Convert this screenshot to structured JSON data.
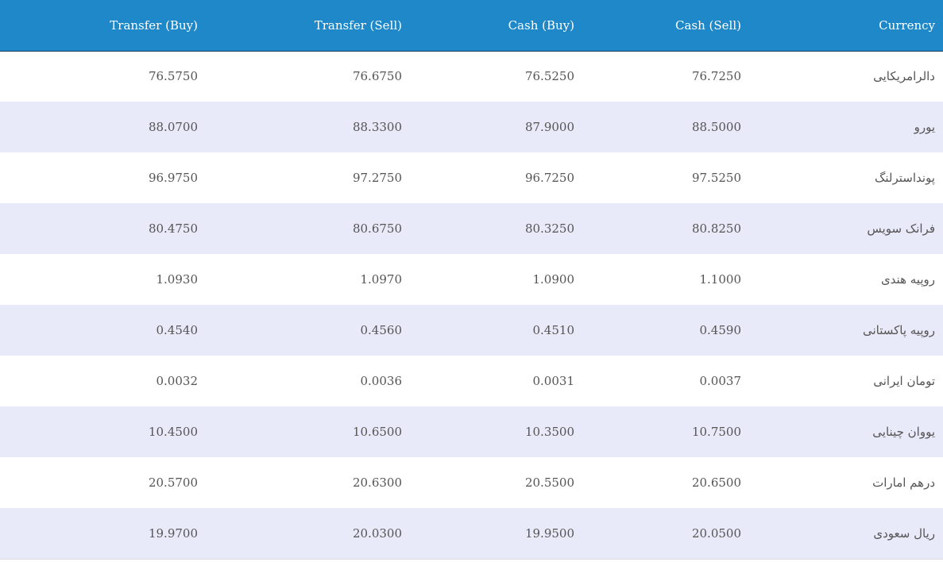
{
  "headers": {
    "transfer_buy": "Transfer (Buy)",
    "transfer_sell": "Transfer (Sell)",
    "cash_buy": "Cash (Buy)",
    "cash_sell": "Cash (Sell)",
    "currency": "Currency"
  },
  "rows": [
    {
      "transfer_buy": "76.5750",
      "transfer_sell": "76.6750",
      "cash_buy": "76.5250",
      "cash_sell": "76.7250",
      "currency": "دالرامریکایی"
    },
    {
      "transfer_buy": "88.0700",
      "transfer_sell": "88.3300",
      "cash_buy": "87.9000",
      "cash_sell": "88.5000",
      "currency": "یورو"
    },
    {
      "transfer_buy": "96.9750",
      "transfer_sell": "97.2750",
      "cash_buy": "96.7250",
      "cash_sell": "97.5250",
      "currency": "پونداسترلنگ"
    },
    {
      "transfer_buy": "80.4750",
      "transfer_sell": "80.6750",
      "cash_buy": "80.3250",
      "cash_sell": "80.8250",
      "currency": "فرانک سویس"
    },
    {
      "transfer_buy": "1.0930",
      "transfer_sell": "1.0970",
      "cash_buy": "1.0900",
      "cash_sell": "1.1000",
      "currency": "روپیه هندی"
    },
    {
      "transfer_buy": "0.4540",
      "transfer_sell": "0.4560",
      "cash_buy": "0.4510",
      "cash_sell": "0.4590",
      "currency": "روپیه پاکستانی"
    },
    {
      "transfer_buy": "0.0032",
      "transfer_sell": "0.0036",
      "cash_buy": "0.0031",
      "cash_sell": "0.0037",
      "currency": "تومان ایرانی"
    },
    {
      "transfer_buy": "10.4500",
      "transfer_sell": "10.6500",
      "cash_buy": "10.3500",
      "cash_sell": "10.7500",
      "currency": "یووان چینایی"
    },
    {
      "transfer_buy": "20.5700",
      "transfer_sell": "20.6300",
      "cash_buy": "20.5500",
      "cash_sell": "20.6500",
      "currency": "درهم امارات"
    },
    {
      "transfer_buy": "19.9700",
      "transfer_sell": "20.0300",
      "cash_buy": "19.9500",
      "cash_sell": "20.0500",
      "currency": "ریال سعودی"
    }
  ],
  "colors": {
    "header_bg": "#1e88c8",
    "header_text": "#ffffff",
    "row_alt_bg": "#e8e9f9",
    "row_bg": "#ffffff",
    "cell_text": "#555555"
  }
}
